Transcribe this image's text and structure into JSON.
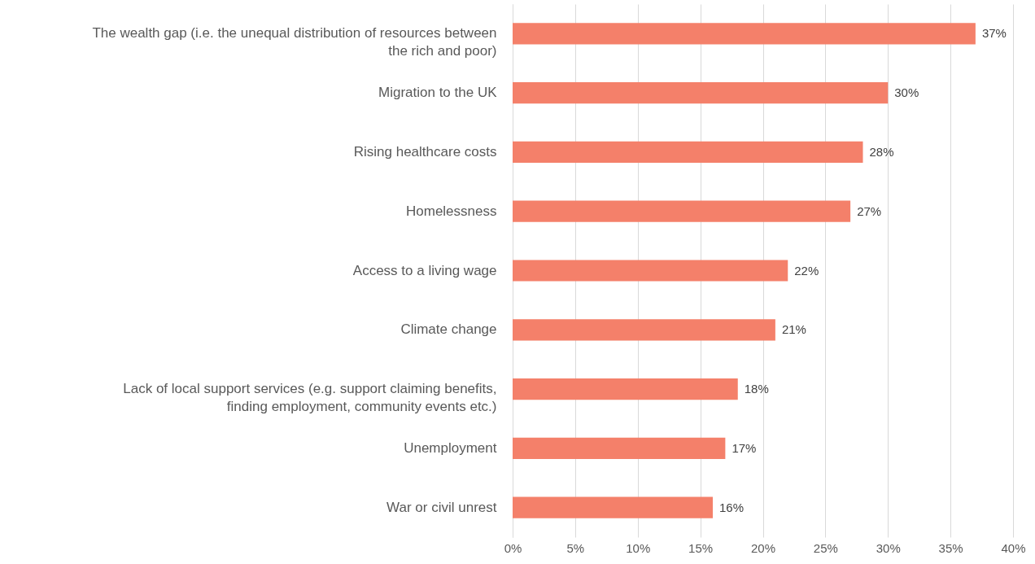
{
  "chart_data": {
    "type": "bar",
    "orientation": "horizontal",
    "categories": [
      "The wealth gap (i.e. the unequal distribution of resources between the rich and poor)",
      "Migration to the UK",
      "Rising healthcare costs",
      "Homelessness",
      "Access to a living wage",
      "Climate change",
      "Lack of local support services (e.g. support claiming benefits, finding employment, community events etc.)",
      "Unemployment",
      "War or civil unrest"
    ],
    "values": [
      37,
      30,
      28,
      27,
      22,
      21,
      18,
      17,
      16
    ],
    "value_labels": [
      "37%",
      "30%",
      "28%",
      "27%",
      "22%",
      "21%",
      "18%",
      "17%",
      "16%"
    ],
    "color": "#f4806a",
    "xlim": [
      0,
      40
    ],
    "xticks": [
      {
        "value": 0,
        "label": "0%"
      },
      {
        "value": 5,
        "label": "5%"
      },
      {
        "value": 10,
        "label": "10%"
      },
      {
        "value": 15,
        "label": "15%"
      },
      {
        "value": 20,
        "label": "20%"
      },
      {
        "value": 25,
        "label": "25%"
      },
      {
        "value": 30,
        "label": "30%"
      },
      {
        "value": 35,
        "label": "35%"
      },
      {
        "value": 40,
        "label": "40%"
      }
    ],
    "grid": "x"
  }
}
